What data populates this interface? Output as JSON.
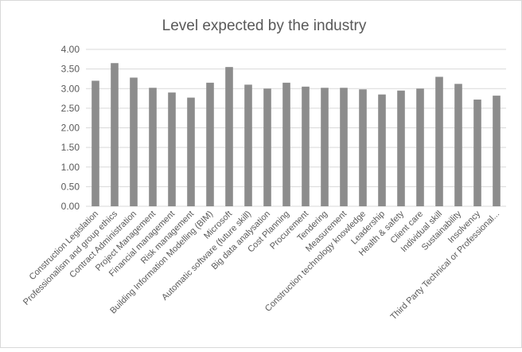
{
  "chart_data": {
    "type": "bar",
    "title": "Level expected by the industry",
    "xlabel": "",
    "ylabel": "",
    "ylim": [
      0,
      4
    ],
    "ytick_step": 0.5,
    "yticks": [
      "0.00",
      "0.50",
      "1.00",
      "1.50",
      "2.00",
      "2.50",
      "3.00",
      "3.50",
      "4.00"
    ],
    "grid": true,
    "legend": "none",
    "bar_color": "#8c8c8c",
    "categories": [
      "Construction Legislation",
      "Professionalism and group ethics",
      "Contract Administration",
      "Project Management",
      "Financial management",
      "Risk management",
      "Building Information Modelling (BIM)",
      "Microsoft",
      "Automatic software (future skill)",
      "Big data analysation",
      "Cost Planning",
      "Procurement",
      "Tendering",
      "Measurement",
      "Construction technology knowledge",
      "Leadership",
      "Health & safety",
      "Client care",
      "Individual skill",
      "Sustainability",
      "Insolvency",
      "Third Party Technical or Professional..."
    ],
    "values": [
      3.2,
      3.65,
      3.28,
      3.02,
      2.9,
      2.77,
      3.15,
      3.55,
      3.1,
      3.0,
      3.15,
      3.05,
      3.02,
      3.02,
      2.98,
      2.85,
      2.95,
      3.0,
      3.3,
      3.12,
      2.72,
      2.82
    ]
  }
}
